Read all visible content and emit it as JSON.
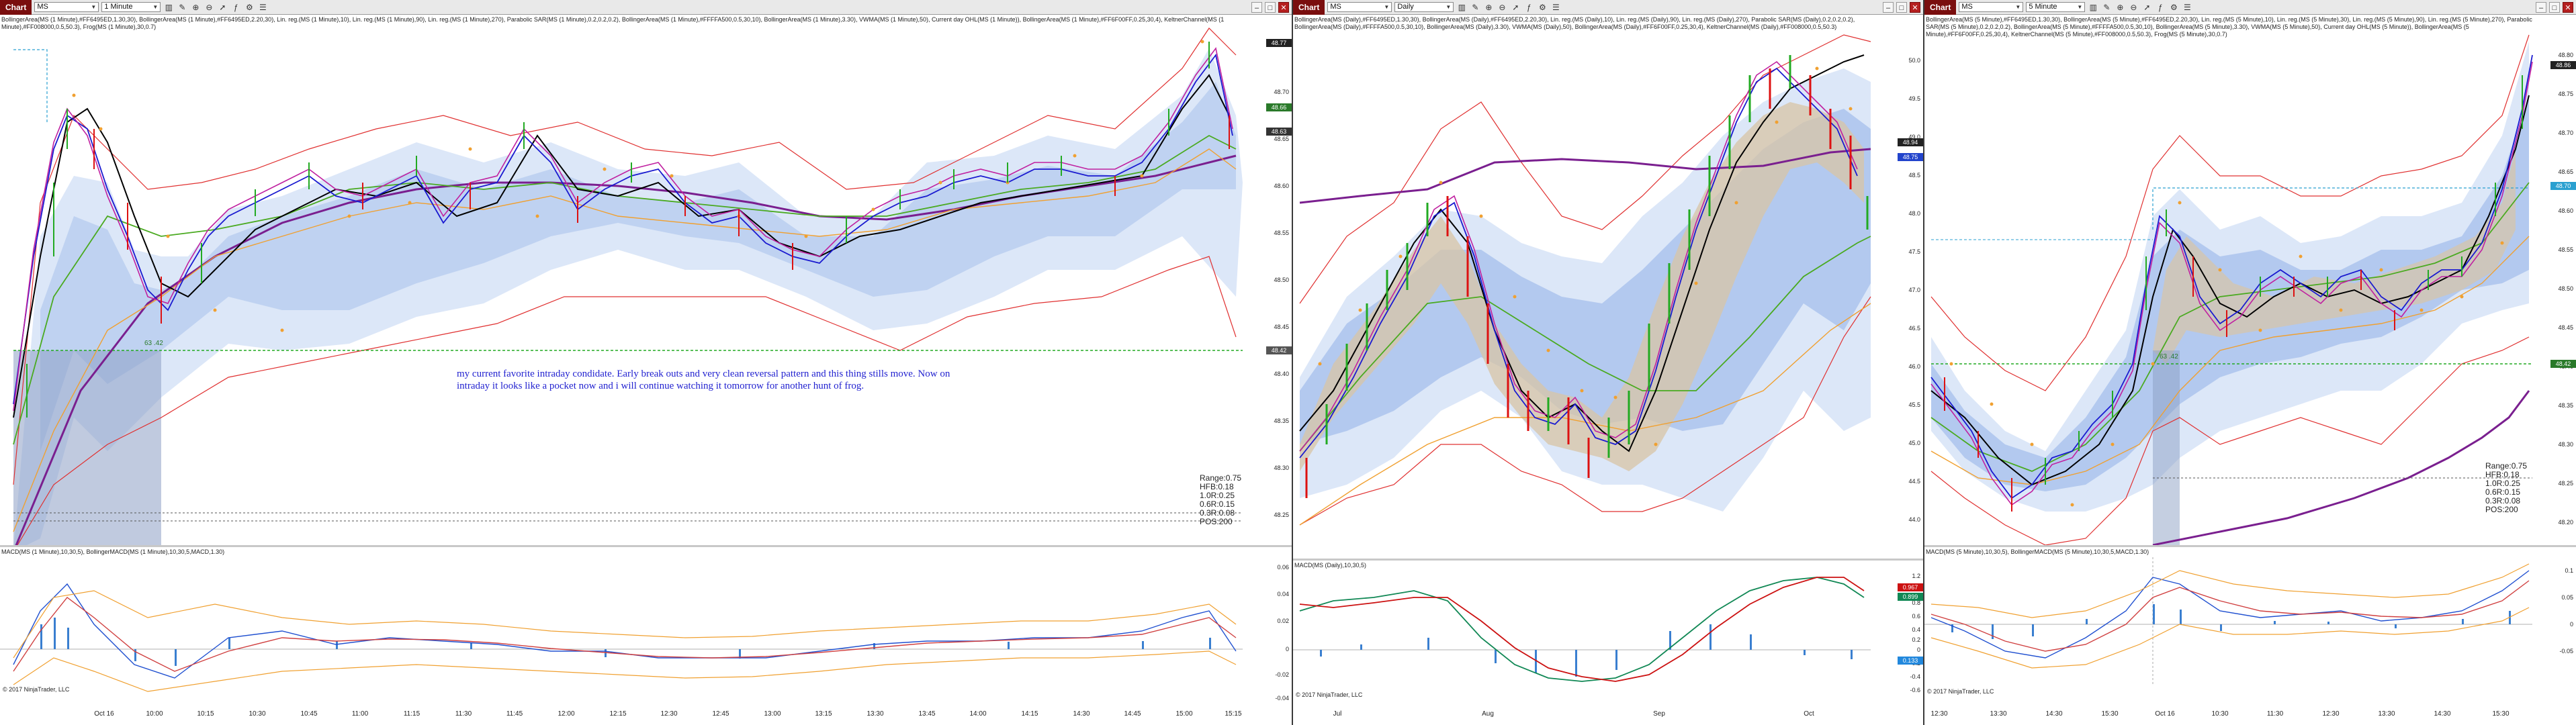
{
  "windows": [
    {
      "id": "w1",
      "toolbar": {
        "chart_label": "Chart",
        "instrument": "MS",
        "interval": "1 Minute"
      },
      "indicator_text": "BollingerArea(MS (1 Minute),#FF6495ED,1.30,30), BollingerArea(MS (1 Minute),#FF6495ED,2.20,30), Lin. reg.(MS (1 Minute),10), Lin. reg.(MS (1 Minute),90), Lin. reg.(MS (1 Minute),270), Parabolic SAR(MS (1 Minute),0.2,0.2,0.2), BollingerArea(MS (1 Minute),#FFFFA500,0.5,30,10), BollingerArea(MS (1 Minute),3.30), VWMA(MS (1 Minute),50), Current day OHL(MS (1 Minute)), BollingerArea(MS (1 Minute),#FF6F00FF,0.25,30,4), KeltnerChannel(MS (1 Minute),#FF008000,0.5,50.3), Frog(MS (1 Minute),30,0.7)",
      "price_ticks": [
        "48.75",
        "48.70",
        "48.65",
        "48.60",
        "48.55",
        "48.50",
        "48.45",
        "48.40",
        "48.35",
        "48.30",
        "48.25"
      ],
      "price_flags": [
        {
          "label": "48.77",
          "color": "#222222"
        },
        {
          "label": "48.66",
          "color": "#2a7a2a"
        },
        {
          "label": "48.63",
          "color": "#333333"
        },
        {
          "label": "48.42",
          "color": "#555555"
        }
      ],
      "level_label": "63 .42",
      "stats": [
        "Range:0.75",
        "HFB:0.18",
        "1.0R:0.25",
        "0.6R:0.15",
        "0.3R:0.08",
        "POS:200"
      ],
      "annotation": "my current favorite intraday condidate. Early break outs and very clean reversal pattern and this thing stills move. Now on intraday it looks like a pocket now and i will continue watching it tomorrow for another hunt of frog.",
      "macd_label": "MACD(MS (1 Minute),10,30,5), BollingerMACD(MS (1 Minute),10,30,5,MACD,1.30)",
      "macd_ticks": [
        "0.06",
        "0.04",
        "0.02",
        "0",
        "-0.02",
        "-0.04"
      ],
      "copyright": "© 2017 NinjaTrader, LLC",
      "time_ticks": [
        "Oct 16",
        "10:00",
        "10:15",
        "10:30",
        "10:45",
        "11:00",
        "11:15",
        "11:30",
        "11:45",
        "12:00",
        "12:15",
        "12:30",
        "12:45",
        "13:00",
        "13:15",
        "13:30",
        "13:45",
        "14:00",
        "14:15",
        "14:30",
        "14:45",
        "15:00",
        "15:15"
      ]
    },
    {
      "id": "w2",
      "toolbar": {
        "chart_label": "Chart",
        "instrument": "MS",
        "interval": "Daily"
      },
      "indicator_text": "BollingerArea(MS (Daily),#FF6495ED,1.30,30), BollingerArea(MS (Daily),#FF6495ED,2.20,30), Lin. reg.(MS (Daily),10), Lin. reg.(MS (Daily),90), Lin. reg.(MS (Daily),270), Parabolic SAR(MS (Daily),0.2,0.2,0.2), BollingerArea(MS (Daily),#FFFFA500,0.5,30,10), BollingerArea(MS (Daily),3.30), VWMA(MS (Daily),50), BollingerArea(MS (Daily),#FF6F00FF,0.25,30,4), KeltnerChannel(MS (Daily),#FF008000,0.5,50.3)",
      "price_ticks": [
        "50.0",
        "49.5",
        "49.0",
        "48.5",
        "48.0",
        "47.5",
        "47.0",
        "46.5",
        "46.0",
        "45.5",
        "45.0",
        "44.5",
        "44.0"
      ],
      "price_flags": [
        {
          "label": "48.94",
          "color": "#222222"
        },
        {
          "label": "48.75",
          "color": "#2244cc"
        }
      ],
      "macd_label": "MACD(MS (Daily),10,30,5)",
      "macd_ticks": [
        "1.2",
        "1",
        "0.8",
        "0.6",
        "0.4",
        "0.2",
        "0",
        "-0.2",
        "-0.4",
        "-0.6"
      ],
      "macd_flags": [
        {
          "label": "0.967",
          "color": "#cc1111"
        },
        {
          "label": "0.899",
          "color": "#118855"
        },
        {
          "label": "0.133",
          "color": "#2288dd"
        }
      ],
      "copyright": "© 2017 NinjaTrader, LLC",
      "time_ticks": [
        "Jul",
        "Aug",
        "Sep",
        "Oct"
      ]
    },
    {
      "id": "w3",
      "toolbar": {
        "chart_label": "Chart",
        "instrument": "MS",
        "interval": "5 Minute"
      },
      "indicator_text": "BollingerArea(MS (5 Minute),#FF6495ED,1.30,30), BollingerArea(MS (5 Minute),#FF6495ED,2.20,30), Lin. reg.(MS (5 Minute),10), Lin. reg.(MS (5 Minute),30), Lin. reg.(MS (5 Minute),90), Lin. reg.(MS (5 Minute),270), Parabolic SAR(MS (5 Minute),0.2,0.2,0.2), BollingerArea(MS (5 Minute),#FFFFA500,0.5,30,10), BollingerArea(MS (5 Minute),3.30), VWMA(MS (5 Minute),50), Current day OHL(MS (5 Minute)), BollingerArea(MS (5 Minute),#FF6F00FF,0.25,30,4), KeltnerChannel(MS (5 Minute),#FF008000,0.5,50.3), Frog(MS (5 Minute),30,0.7)",
      "price_ticks": [
        "48.80",
        "48.75",
        "48.70",
        "48.65",
        "48.60",
        "48.55",
        "48.50",
        "48.45",
        "48.40",
        "48.35",
        "48.30",
        "48.25",
        "48.20"
      ],
      "price_flags": [
        {
          "label": "48.86",
          "color": "#222222"
        },
        {
          "label": "48.70",
          "color": "#2aa0d0"
        },
        {
          "label": "48.42",
          "color": "#2a7a2a"
        }
      ],
      "level_label": "63 .42",
      "stats": [
        "Range:0.75",
        "HFB:0.18",
        "1.0R:0.25",
        "0.6R:0.15",
        "0.3R:0.08",
        "POS:200"
      ],
      "macd_label": "MACD(MS (5 Minute),10,30,5), BollingerMACD(MS (5 Minute),10,30,5,MACD,1.30)",
      "macd_ticks": [
        "0.1",
        "0.05",
        "0",
        "-0.05"
      ],
      "copyright": "© 2017 NinjaTrader, LLC",
      "time_ticks": [
        "12:30",
        "13:30",
        "14:30",
        "15:30",
        "Oct 16",
        "10:30",
        "11:30",
        "12:30",
        "13:30",
        "14:30",
        "15:30"
      ]
    }
  ],
  "colors": {
    "band_outer": "#c9d9f3",
    "band_inner": "#a9c2ec",
    "band_core": "#d8c4a6",
    "keltner": "#e03030",
    "vwma": "#7a1f8f",
    "linreg_fast": "#1a1ad0",
    "linreg_mid": "#000000",
    "green_line": "#55c23a",
    "orange_line": "#f0a030",
    "sar_dot": "#f0a030",
    "bar_green": "#22aa22",
    "bar_red": "#dd1111",
    "macd_hist": "#3a7fd0"
  }
}
